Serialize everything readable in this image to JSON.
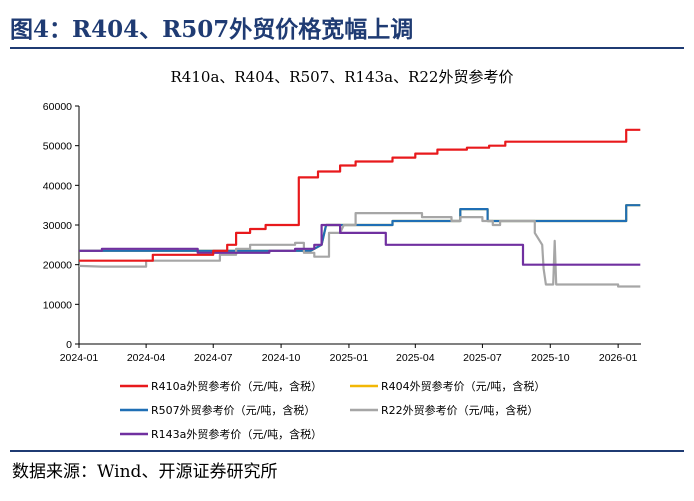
{
  "figure": {
    "title": "图4：R404、R507外贸价格宽幅上调",
    "source": "数据来源：Wind、开源证券研究所"
  },
  "chart_data": {
    "type": "line",
    "title": "R410a、R404、R507、R143a、R22外贸参考价",
    "xlabel": "",
    "ylabel": "",
    "ylim": [
      0,
      60000
    ],
    "yticks": [
      0,
      10000,
      20000,
      30000,
      40000,
      50000,
      60000
    ],
    "ytick_labels": [
      "0",
      "10000",
      "20000",
      "30000",
      "40000",
      "50000",
      "60000"
    ],
    "xlim": [
      "2024-01-01",
      "2026-02-01"
    ],
    "xticks": [
      "2024-01-01",
      "2024-04-01",
      "2024-07-01",
      "2024-10-01",
      "2025-01-01",
      "2025-04-01",
      "2025-07-01",
      "2025-10-01",
      "2026-01-01"
    ],
    "xtick_labels": [
      "2024-01",
      "2024-04",
      "2024-07",
      "2024-10",
      "2025-01",
      "2025-04",
      "2025-07",
      "2025-10",
      "2026-01"
    ],
    "grid": false,
    "legend_position": "bottom",
    "series": [
      {
        "name": "R404外贸参考价（元/吨，含税）",
        "color": "#f2b705",
        "points": [
          [
            "2024-01-01",
            23500
          ],
          [
            "2024-08-20",
            23500
          ],
          [
            "2024-08-20",
            23500
          ],
          [
            "2024-11-10",
            23500
          ],
          [
            "2024-11-25",
            25000
          ],
          [
            "2024-12-01",
            30000
          ],
          [
            "2025-03-01",
            30000
          ],
          [
            "2025-03-01",
            31000
          ],
          [
            "2025-06-01",
            31000
          ],
          [
            "2025-06-01",
            34000
          ],
          [
            "2025-07-08",
            34000
          ],
          [
            "2025-07-08",
            31000
          ],
          [
            "2026-01-12",
            31000
          ],
          [
            "2026-01-12",
            35000
          ],
          [
            "2026-01-31",
            35000
          ]
        ]
      },
      {
        "name": "R507外贸参考价（元/吨，含税）",
        "color": "#1f6fb5",
        "points": [
          [
            "2024-01-01",
            23500
          ],
          [
            "2024-08-20",
            23500
          ],
          [
            "2024-08-20",
            23500
          ],
          [
            "2024-11-10",
            23500
          ],
          [
            "2024-11-25",
            25000
          ],
          [
            "2024-12-01",
            30000
          ],
          [
            "2025-03-01",
            30000
          ],
          [
            "2025-03-01",
            31000
          ],
          [
            "2025-06-01",
            31000
          ],
          [
            "2025-06-01",
            34000
          ],
          [
            "2025-07-08",
            34000
          ],
          [
            "2025-07-08",
            31000
          ],
          [
            "2026-01-12",
            31000
          ],
          [
            "2026-01-12",
            35000
          ],
          [
            "2026-01-31",
            35000
          ]
        ]
      },
      {
        "name": "R22外贸参考价（元/吨，含税）",
        "color": "#a6a6a6",
        "points": [
          [
            "2024-01-01",
            19700
          ],
          [
            "2024-02-01",
            19500
          ],
          [
            "2024-04-01",
            19500
          ],
          [
            "2024-04-01",
            21000
          ],
          [
            "2024-07-10",
            21000
          ],
          [
            "2024-07-10",
            22500
          ],
          [
            "2024-08-01",
            22500
          ],
          [
            "2024-08-01",
            24000
          ],
          [
            "2024-08-20",
            24000
          ],
          [
            "2024-08-20",
            25000
          ],
          [
            "2024-10-20",
            25000
          ],
          [
            "2024-10-20",
            25500
          ],
          [
            "2024-11-01",
            25500
          ],
          [
            "2024-11-01",
            23000
          ],
          [
            "2024-11-15",
            23000
          ],
          [
            "2024-11-15",
            22000
          ],
          [
            "2024-12-05",
            22000
          ],
          [
            "2024-12-05",
            28000
          ],
          [
            "2024-12-20",
            28000
          ],
          [
            "2024-12-25",
            30000
          ],
          [
            "2025-01-10",
            30000
          ],
          [
            "2025-01-10",
            33000
          ],
          [
            "2025-04-10",
            33000
          ],
          [
            "2025-04-10",
            32000
          ],
          [
            "2025-05-20",
            32000
          ],
          [
            "2025-05-20",
            31000
          ],
          [
            "2025-06-01",
            31000
          ],
          [
            "2025-06-01",
            32000
          ],
          [
            "2025-07-01",
            32000
          ],
          [
            "2025-07-01",
            31000
          ],
          [
            "2025-07-15",
            31000
          ],
          [
            "2025-07-15",
            30000
          ],
          [
            "2025-07-25",
            30000
          ],
          [
            "2025-07-25",
            31000
          ],
          [
            "2025-09-10",
            31000
          ],
          [
            "2025-09-10",
            28000
          ],
          [
            "2025-09-20",
            25000
          ],
          [
            "2025-09-22",
            19000
          ],
          [
            "2025-09-25",
            15000
          ],
          [
            "2025-10-05",
            15000
          ],
          [
            "2025-10-07",
            26000
          ],
          [
            "2025-10-09",
            15000
          ],
          [
            "2026-01-01",
            15000
          ],
          [
            "2026-01-01",
            14500
          ],
          [
            "2026-01-31",
            14500
          ]
        ]
      },
      {
        "name": "R143a外贸参考价（元/吨，含税）",
        "color": "#7030a0",
        "points": [
          [
            "2024-01-01",
            23500
          ],
          [
            "2024-02-01",
            23500
          ],
          [
            "2024-02-01",
            24000
          ],
          [
            "2024-06-10",
            24000
          ],
          [
            "2024-06-10",
            23000
          ],
          [
            "2024-09-15",
            23000
          ],
          [
            "2024-09-15",
            23500
          ],
          [
            "2024-10-20",
            23500
          ],
          [
            "2024-10-20",
            24000
          ],
          [
            "2024-11-15",
            24000
          ],
          [
            "2024-11-15",
            25000
          ],
          [
            "2024-11-25",
            25000
          ],
          [
            "2024-11-25",
            30000
          ],
          [
            "2024-12-20",
            30000
          ],
          [
            "2024-12-20",
            28000
          ],
          [
            "2025-02-20",
            28000
          ],
          [
            "2025-02-20",
            25000
          ],
          [
            "2025-08-25",
            25000
          ],
          [
            "2025-08-25",
            20000
          ],
          [
            "2026-01-31",
            20000
          ]
        ]
      },
      {
        "name": "R410a外贸参考价（元/吨，含税）",
        "color": "#e8191c",
        "points": [
          [
            "2024-01-01",
            21000
          ],
          [
            "2024-04-10",
            21000
          ],
          [
            "2024-04-10",
            22500
          ],
          [
            "2024-07-01",
            22500
          ],
          [
            "2024-07-01",
            23500
          ],
          [
            "2024-07-20",
            23500
          ],
          [
            "2024-07-20",
            25000
          ],
          [
            "2024-08-01",
            25000
          ],
          [
            "2024-08-01",
            28000
          ],
          [
            "2024-08-20",
            28000
          ],
          [
            "2024-08-20",
            29000
          ],
          [
            "2024-09-10",
            29000
          ],
          [
            "2024-09-10",
            30000
          ],
          [
            "2024-10-25",
            30000
          ],
          [
            "2024-10-25",
            42000
          ],
          [
            "2024-11-20",
            42000
          ],
          [
            "2024-11-20",
            43500
          ],
          [
            "2024-12-20",
            43500
          ],
          [
            "2024-12-20",
            45000
          ],
          [
            "2025-01-10",
            45000
          ],
          [
            "2025-01-10",
            46000
          ],
          [
            "2025-03-01",
            46000
          ],
          [
            "2025-03-01",
            47000
          ],
          [
            "2025-04-01",
            47000
          ],
          [
            "2025-04-01",
            48000
          ],
          [
            "2025-05-01",
            48000
          ],
          [
            "2025-05-01",
            49000
          ],
          [
            "2025-06-10",
            49000
          ],
          [
            "2025-06-10",
            49500
          ],
          [
            "2025-07-10",
            49500
          ],
          [
            "2025-07-10",
            50000
          ],
          [
            "2025-08-01",
            50000
          ],
          [
            "2025-08-01",
            51000
          ],
          [
            "2026-01-12",
            51000
          ],
          [
            "2026-01-12",
            54000
          ],
          [
            "2026-01-31",
            54000
          ]
        ]
      }
    ]
  }
}
